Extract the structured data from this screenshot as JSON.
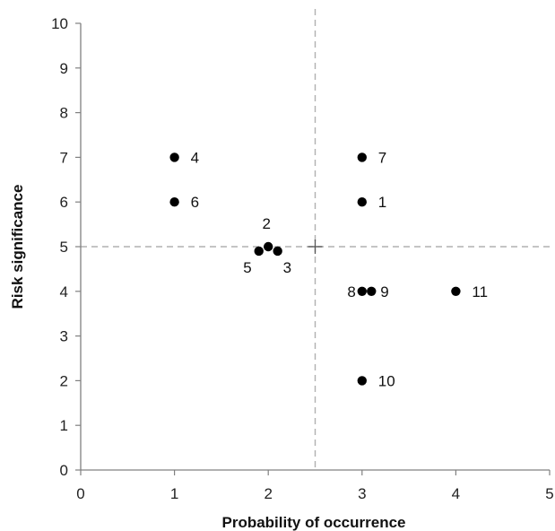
{
  "chart_data": {
    "type": "scatter",
    "xlabel": "Probability of occurrence",
    "ylabel": "Risk significance",
    "xlim": [
      0,
      5
    ],
    "ylim": [
      0,
      10
    ],
    "x_ticks": [
      "0",
      "1",
      "2",
      "3",
      "4",
      "5"
    ],
    "y_ticks": [
      "0",
      "1",
      "2",
      "3",
      "4",
      "5",
      "6",
      "7",
      "8",
      "9",
      "10"
    ],
    "grid": false,
    "reference_lines": {
      "x": 2.5,
      "y": 5,
      "style": "dashed"
    },
    "center_marker": {
      "x": 2.5,
      "y": 5,
      "shape": "plus"
    },
    "marker_color": "#000000",
    "reference_line_color": "#b0b0b0",
    "points": [
      {
        "label": "1",
        "x": 3.0,
        "y": 6.0
      },
      {
        "label": "2",
        "x": 2.0,
        "y": 5.0
      },
      {
        "label": "3",
        "x": 2.1,
        "y": 4.9
      },
      {
        "label": "4",
        "x": 1.0,
        "y": 7.0
      },
      {
        "label": "5",
        "x": 1.9,
        "y": 4.9
      },
      {
        "label": "6",
        "x": 1.0,
        "y": 6.0
      },
      {
        "label": "7",
        "x": 3.0,
        "y": 7.0
      },
      {
        "label": "8",
        "x": 3.0,
        "y": 4.0
      },
      {
        "label": "9",
        "x": 3.1,
        "y": 4.0
      },
      {
        "label": "10",
        "x": 3.0,
        "y": 2.0
      },
      {
        "label": "11",
        "x": 4.0,
        "y": 4.0
      }
    ]
  }
}
